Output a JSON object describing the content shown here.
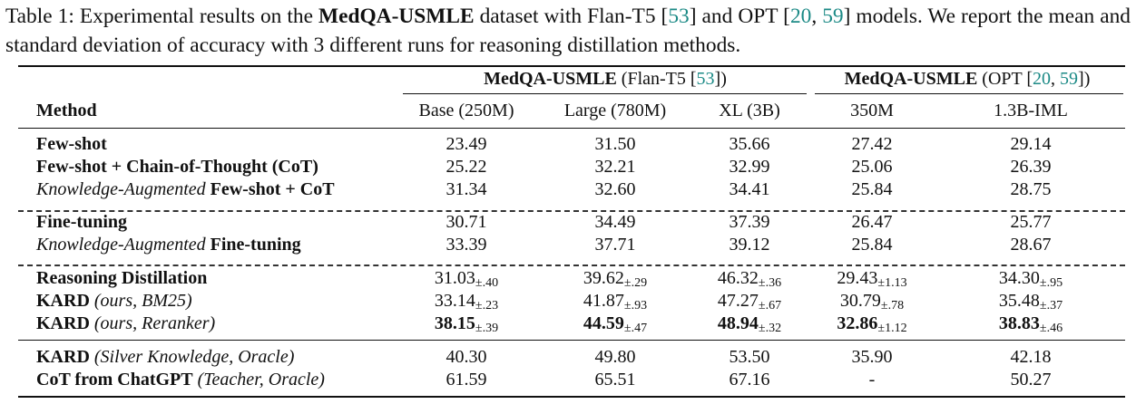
{
  "caption": {
    "prefix": "Table 1: Experimental results on the ",
    "dataset": "MedQA-USMLE",
    "mid1": " dataset with Flan-T5 [",
    "cite1": "53",
    "mid2": "] and OPT [",
    "cite2a": "20",
    "sep": ", ",
    "cite2b": "59",
    "mid3": "] models. We report the mean and standard deviation of accuracy with 3 different runs for reasoning distillation methods."
  },
  "groups": {
    "flan": {
      "bold": "MedQA-USMLE",
      "rest": " (Flan-T5 [",
      "cite": "53",
      "close": "])"
    },
    "opt": {
      "bold": "MedQA-USMLE",
      "rest": " (OPT [",
      "cite1": "20",
      "sep": ", ",
      "cite2": "59",
      "close": "])"
    }
  },
  "columns": {
    "method": "Method",
    "c1": "Base (250M)",
    "c2": "Large (780M)",
    "c3": "XL (3B)",
    "c4": "350M",
    "c5": "1.3B-IML"
  },
  "rows": [
    {
      "pre_it": "",
      "bold": "Few-shot",
      "post_it": "",
      "v": [
        "23.49",
        "31.50",
        "35.66",
        "27.42",
        "29.14"
      ],
      "sd": [
        "",
        "",
        "",
        "",
        ""
      ],
      "best": [
        false,
        false,
        false,
        false,
        false
      ]
    },
    {
      "pre_it": "",
      "bold": "Few-shot + Chain-of-Thought (CoT)",
      "post_it": "",
      "v": [
        "25.22",
        "32.21",
        "32.99",
        "25.06",
        "26.39"
      ],
      "sd": [
        "",
        "",
        "",
        "",
        ""
      ],
      "best": [
        false,
        false,
        false,
        false,
        false
      ]
    },
    {
      "pre_it": "Knowledge-Augmented ",
      "bold": "Few-shot + CoT",
      "post_it": "",
      "v": [
        "31.34",
        "32.60",
        "34.41",
        "25.84",
        "28.75"
      ],
      "sd": [
        "",
        "",
        "",
        "",
        ""
      ],
      "best": [
        false,
        false,
        false,
        false,
        false
      ]
    },
    {
      "pre_it": "",
      "bold": "Fine-tuning",
      "post_it": "",
      "v": [
        "30.71",
        "34.49",
        "37.39",
        "26.47",
        "25.77"
      ],
      "sd": [
        "",
        "",
        "",
        "",
        ""
      ],
      "best": [
        false,
        false,
        false,
        false,
        false
      ]
    },
    {
      "pre_it": "Knowledge-Augmented ",
      "bold": "Fine-tuning",
      "post_it": "",
      "v": [
        "33.39",
        "37.71",
        "39.12",
        "25.84",
        "28.67"
      ],
      "sd": [
        "",
        "",
        "",
        "",
        ""
      ],
      "best": [
        false,
        false,
        false,
        false,
        false
      ]
    },
    {
      "pre_it": "",
      "bold": "Reasoning Distillation",
      "post_it": "",
      "v": [
        "31.03",
        "39.62",
        "46.32",
        "29.43",
        "34.30"
      ],
      "sd": [
        "±.40",
        "±.29",
        "±.36",
        "±1.13",
        "±.95"
      ],
      "best": [
        false,
        false,
        false,
        false,
        false
      ]
    },
    {
      "pre_it": "",
      "bold": "KARD",
      "post_it": " (ours, BM25)",
      "v": [
        "33.14",
        "41.87",
        "47.27",
        "30.79",
        "35.48"
      ],
      "sd": [
        "±.23",
        "±.93",
        "±.67",
        "±.78",
        "±.37"
      ],
      "best": [
        false,
        false,
        false,
        false,
        false
      ]
    },
    {
      "pre_it": "",
      "bold": "KARD",
      "post_it": " (ours, Reranker)",
      "v": [
        "38.15",
        "44.59",
        "48.94",
        "32.86",
        "38.83"
      ],
      "sd": [
        "±.39",
        "±.47",
        "±.32",
        "±1.12",
        "±.46"
      ],
      "best": [
        true,
        true,
        true,
        true,
        true
      ]
    },
    {
      "pre_it": "",
      "bold": "KARD",
      "post_it": " (Silver Knowledge, Oracle)",
      "v": [
        "40.30",
        "49.80",
        "53.50",
        "35.90",
        "42.18"
      ],
      "sd": [
        "",
        "",
        "",
        "",
        ""
      ],
      "best": [
        false,
        false,
        false,
        false,
        false
      ]
    },
    {
      "pre_it": "",
      "bold": "CoT from ChatGPT",
      "post_it": " (Teacher, Oracle)",
      "v": [
        "61.59",
        "65.51",
        "67.16",
        "-",
        "50.27"
      ],
      "sd": [
        "",
        "",
        "",
        "",
        ""
      ],
      "best": [
        false,
        false,
        false,
        false,
        false
      ]
    }
  ]
}
